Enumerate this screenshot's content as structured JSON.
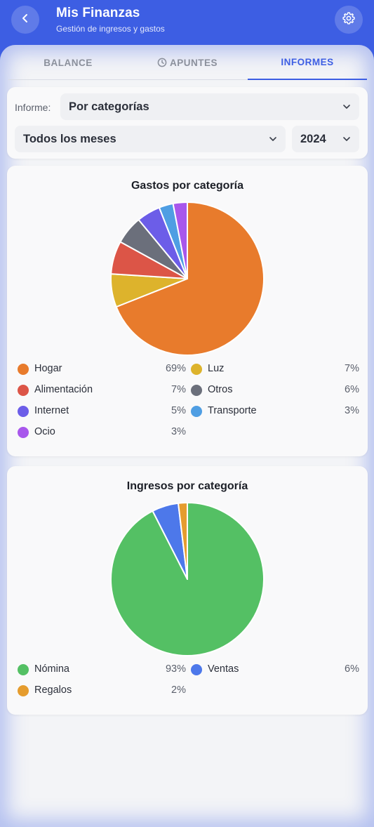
{
  "header": {
    "title": "Mis Finanzas",
    "subtitle": "Gestión de ingresos y gastos",
    "back_icon": "chevron-left-icon",
    "settings_icon": "gear-icon"
  },
  "tabs": [
    {
      "label": "BALANCE",
      "active": false
    },
    {
      "label": "APUNTES",
      "active": false,
      "icon": "clock-icon"
    },
    {
      "label": "INFORMES",
      "active": true
    }
  ],
  "filters": {
    "report_label": "Informe:",
    "report_value": "Por categorías",
    "month_value": "Todos los meses",
    "year_value": "2024"
  },
  "chart_data": [
    {
      "type": "pie",
      "title": "Gastos por categoría",
      "categories": [
        "Hogar",
        "Luz",
        "Alimentación",
        "Otros",
        "Internet",
        "Transporte",
        "Ocio"
      ],
      "values": [
        69,
        7,
        7,
        6,
        5,
        3,
        3
      ],
      "labels": [
        "69%",
        "7%",
        "7%",
        "6%",
        "5%",
        "3%",
        "3%"
      ],
      "colors": [
        "#e87b2c",
        "#ddb32c",
        "#dc5547",
        "#6b6f7b",
        "#6c5de8",
        "#4f9ee3",
        "#a857ec"
      ],
      "legend_order": [
        0,
        1,
        2,
        3,
        4,
        5,
        6
      ]
    },
    {
      "type": "pie",
      "title": "Ingresos por categoría",
      "categories": [
        "Nómina",
        "Ventas",
        "Regalos"
      ],
      "values": [
        92.5,
        5.6,
        1.9
      ],
      "labels": [
        "93%",
        "6%",
        "2%"
      ],
      "colors": [
        "#54c064",
        "#4d78ea",
        "#e59c2e"
      ],
      "legend_order": [
        0,
        1,
        2
      ]
    }
  ]
}
